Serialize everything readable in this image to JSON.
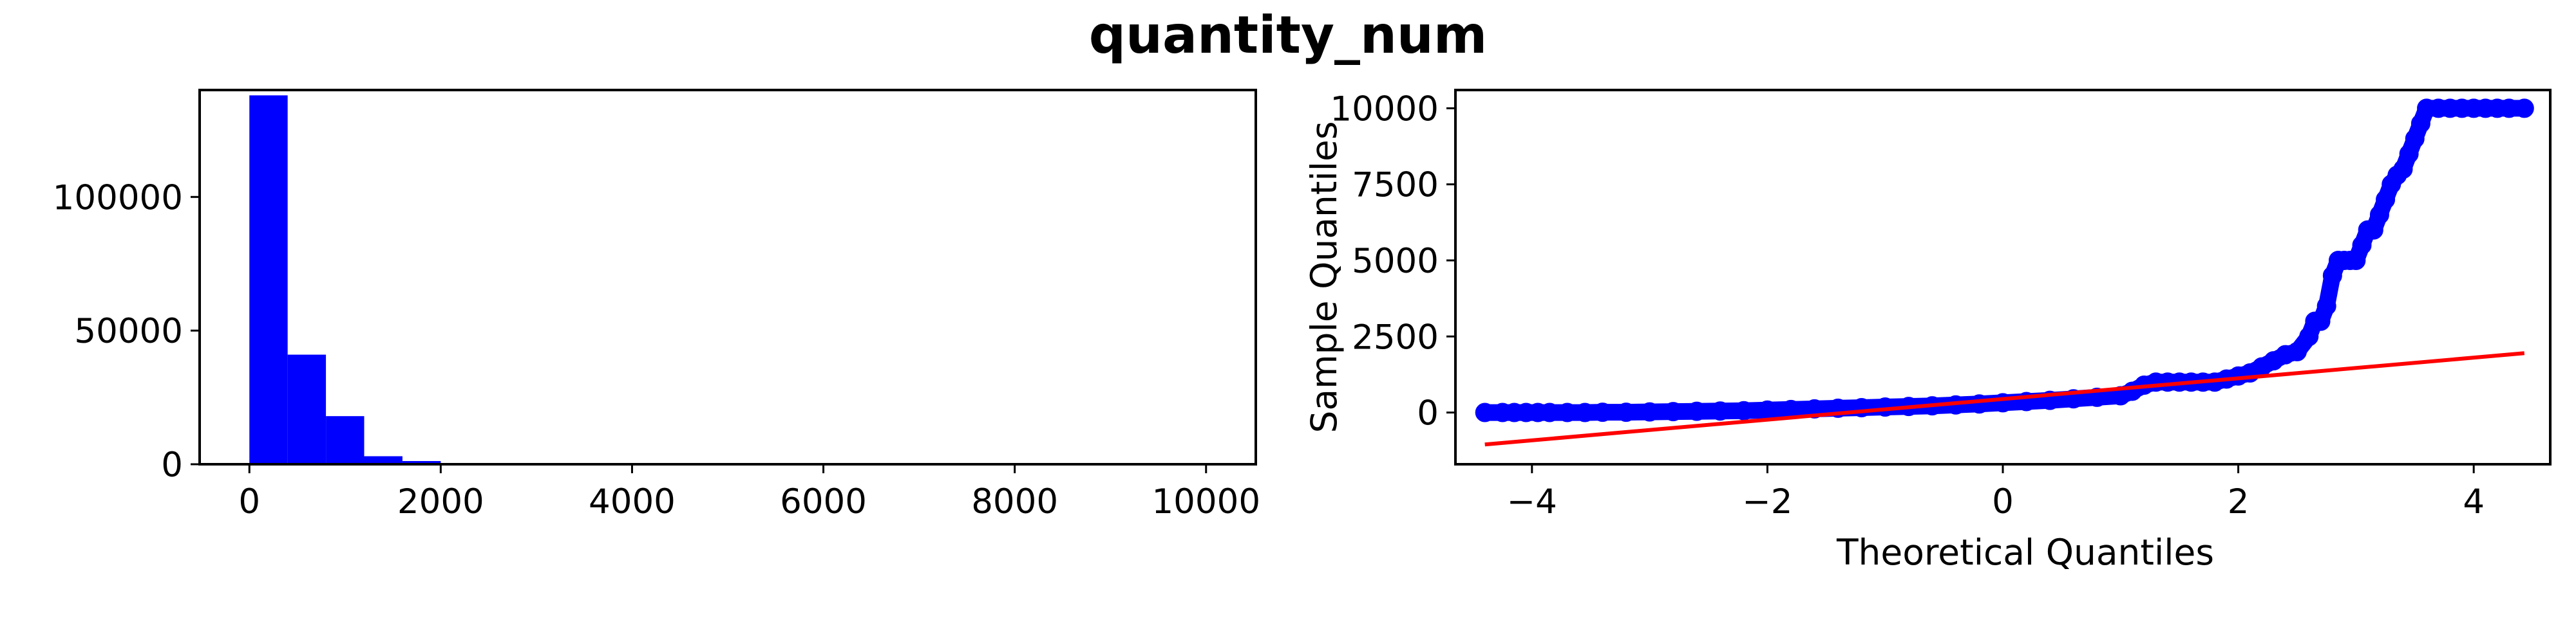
{
  "figure": {
    "title": "quantity_num"
  },
  "colors": {
    "histogram": "#0000ff",
    "qq_points": "#0000ff",
    "qq_line": "#ff0000"
  },
  "chart_data": [
    {
      "type": "bar",
      "title": "",
      "xlabel": "",
      "ylabel": "",
      "xlim": [
        -520,
        10520
      ],
      "ylim": [
        0,
        140000
      ],
      "x_ticks": [
        0,
        2000,
        4000,
        6000,
        8000,
        10000
      ],
      "x_tick_labels": [
        "0",
        "2000",
        "4000",
        "6000",
        "8000",
        "10000"
      ],
      "y_ticks": [
        0,
        50000,
        100000
      ],
      "y_tick_labels": [
        "0",
        "50000",
        "100000"
      ],
      "grid": false,
      "bin_width": 400,
      "bins": [
        {
          "start": 0,
          "end": 400,
          "count": 138000
        },
        {
          "start": 400,
          "end": 800,
          "count": 41000
        },
        {
          "start": 800,
          "end": 1200,
          "count": 18000
        },
        {
          "start": 1200,
          "end": 1600,
          "count": 3000
        },
        {
          "start": 1600,
          "end": 2000,
          "count": 1200
        },
        {
          "start": 2000,
          "end": 2400,
          "count": 300
        },
        {
          "start": 2400,
          "end": 2800,
          "count": 150
        },
        {
          "start": 2800,
          "end": 3200,
          "count": 80
        },
        {
          "start": 3200,
          "end": 3600,
          "count": 40
        },
        {
          "start": 3600,
          "end": 4000,
          "count": 30
        },
        {
          "start": 4000,
          "end": 4400,
          "count": 20
        },
        {
          "start": 4400,
          "end": 4800,
          "count": 20
        },
        {
          "start": 4800,
          "end": 5200,
          "count": 40
        },
        {
          "start": 5200,
          "end": 5600,
          "count": 10
        },
        {
          "start": 5600,
          "end": 6000,
          "count": 15
        },
        {
          "start": 6000,
          "end": 6400,
          "count": 10
        },
        {
          "start": 6400,
          "end": 6800,
          "count": 5
        },
        {
          "start": 6800,
          "end": 7200,
          "count": 5
        },
        {
          "start": 7200,
          "end": 7600,
          "count": 5
        },
        {
          "start": 7600,
          "end": 8000,
          "count": 5
        },
        {
          "start": 8000,
          "end": 8400,
          "count": 5
        },
        {
          "start": 8400,
          "end": 8800,
          "count": 5
        },
        {
          "start": 8800,
          "end": 9200,
          "count": 5
        },
        {
          "start": 9200,
          "end": 9600,
          "count": 5
        },
        {
          "start": 9600,
          "end": 10000,
          "count": 30
        }
      ]
    },
    {
      "type": "scatter",
      "title": "",
      "xlabel": "Theoretical Quantiles",
      "ylabel": "Sample Quantiles",
      "xlim": [
        -4.65,
        4.65
      ],
      "ylim": [
        -1700,
        10600
      ],
      "x_ticks": [
        -4,
        -2,
        0,
        2,
        4
      ],
      "x_tick_labels": [
        "−4",
        "−2",
        "0",
        "2",
        "4"
      ],
      "y_ticks": [
        0,
        2500,
        5000,
        7500,
        10000
      ],
      "y_tick_labels": [
        "0",
        "2500",
        "5000",
        "7500",
        "10000"
      ],
      "grid": false,
      "marker": "open-circle",
      "points": {
        "x": [
          -4.4,
          -4.25,
          -4.15,
          -4.05,
          -3.95,
          -3.85,
          -3.7,
          -3.55,
          -3.4,
          -3.2,
          -3.0,
          -2.8,
          -2.6,
          -2.4,
          -2.2,
          -2.0,
          -1.8,
          -1.6,
          -1.4,
          -1.2,
          -1.0,
          -0.8,
          -0.6,
          -0.4,
          -0.2,
          0.0,
          0.2,
          0.4,
          0.6,
          0.8,
          1.0,
          1.1,
          1.2,
          1.3,
          1.4,
          1.5,
          1.6,
          1.7,
          1.8,
          1.9,
          2.0,
          2.1,
          2.2,
          2.3,
          2.4,
          2.5,
          2.6,
          2.65,
          2.7,
          2.75,
          2.8,
          2.85,
          2.9,
          2.95,
          3.0,
          3.05,
          3.1,
          3.15,
          3.2,
          3.25,
          3.3,
          3.35,
          3.4,
          3.45,
          3.5,
          3.55,
          3.6,
          3.7,
          3.8,
          3.9,
          4.0,
          4.1,
          4.2,
          4.3,
          4.43
        ],
        "y": [
          0,
          0,
          0,
          0,
          0,
          0,
          0,
          0,
          10,
          10,
          20,
          30,
          40,
          50,
          60,
          80,
          100,
          120,
          140,
          160,
          180,
          200,
          220,
          250,
          280,
          320,
          360,
          400,
          450,
          500,
          550,
          700,
          900,
          1000,
          1000,
          1000,
          1000,
          1000,
          1000,
          1100,
          1200,
          1300,
          1500,
          1700,
          1900,
          2000,
          2500,
          3000,
          3000,
          3500,
          4500,
          5000,
          5000,
          5000,
          5000,
          5500,
          6000,
          6000,
          6500,
          7000,
          7500,
          7800,
          8000,
          8500,
          9000,
          9500,
          10000,
          10000,
          10000,
          10000,
          10000,
          10000,
          10000,
          10000,
          10000
        ]
      },
      "reference_line": {
        "x": [
          -4.4,
          4.43
        ],
        "y": [
          -1050,
          1950
        ]
      }
    }
  ]
}
